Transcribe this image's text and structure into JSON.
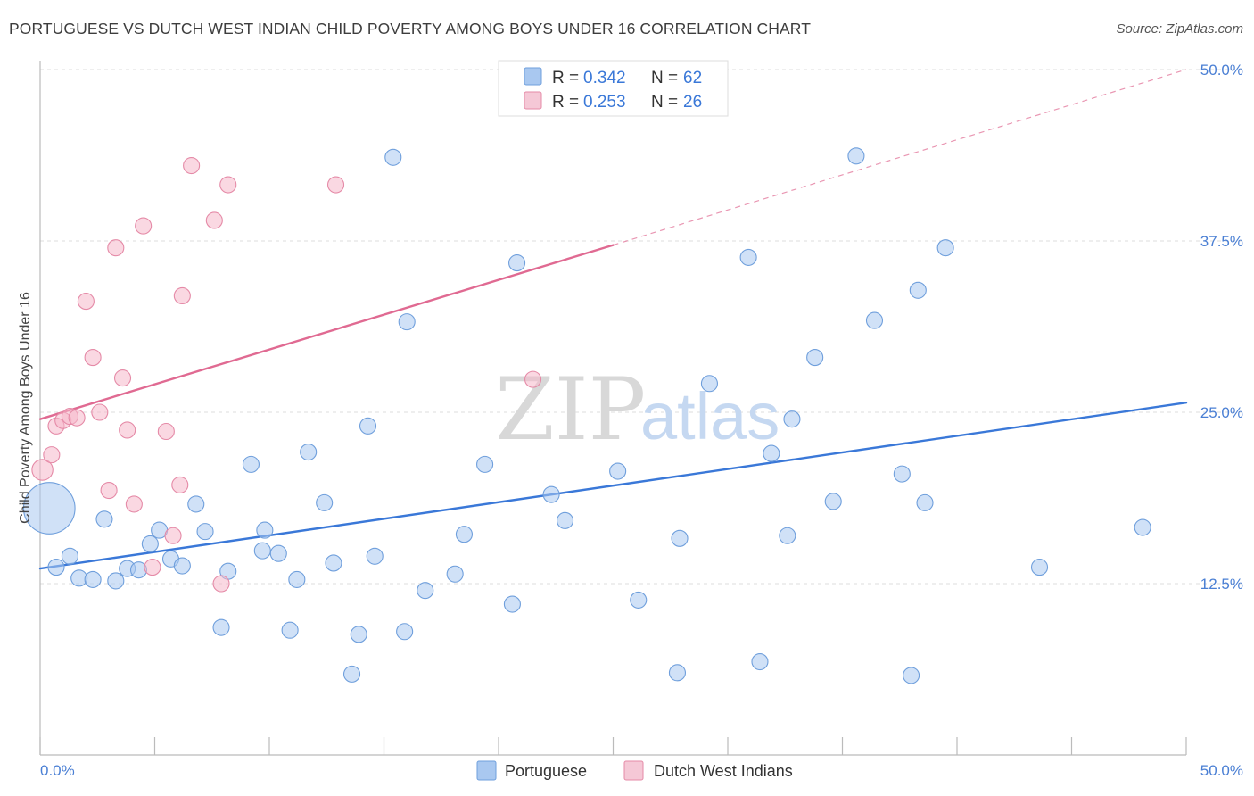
{
  "title": "PORTUGUESE VS DUTCH WEST INDIAN CHILD POVERTY AMONG BOYS UNDER 16 CORRELATION CHART",
  "source": "Source: ZipAtlas.com",
  "watermark": {
    "zip": "ZIP",
    "atlas": "atlas"
  },
  "legend": {
    "r_label": "R =",
    "n_label": "N =",
    "rows": [
      {
        "r": "0.342",
        "n": "62",
        "color": "#a9c8f0"
      },
      {
        "r": "0.253",
        "n": "26",
        "color": "#f5b8ca"
      }
    ]
  },
  "chart_data": {
    "type": "scatter",
    "title": "PORTUGUESE VS DUTCH WEST INDIAN CHILD POVERTY AMONG BOYS UNDER 16 CORRELATION CHART",
    "xlabel": "",
    "ylabel": "Child Poverty Among Boys Under 16",
    "xlim": [
      0,
      50
    ],
    "ylim": [
      0,
      50
    ],
    "x_tick_labels": [
      "0.0%",
      "50.0%"
    ],
    "y_ticks": [
      12.5,
      25.0,
      37.5,
      50.0
    ],
    "y_tick_labels": [
      "12.5%",
      "25.0%",
      "37.5%",
      "50.0%"
    ],
    "grid": true,
    "legend_position": "top-center",
    "series": [
      {
        "name": "Portuguese",
        "color": "#a9c8f0",
        "stroke": "#6f9fdc",
        "line_color": "#3a78d8",
        "r": 0.342,
        "n": 62,
        "trend": {
          "x": [
            0,
            50
          ],
          "y": [
            13.6,
            25.7
          ]
        },
        "points": [
          [
            0.4,
            18.0,
            3.2
          ],
          [
            0.7,
            13.7,
            1
          ],
          [
            1.3,
            14.5,
            1
          ],
          [
            1.7,
            12.9,
            1
          ],
          [
            2.3,
            12.8,
            1
          ],
          [
            2.8,
            17.2,
            1
          ],
          [
            3.3,
            12.7,
            1
          ],
          [
            3.8,
            13.6,
            1
          ],
          [
            4.3,
            13.5,
            1
          ],
          [
            4.8,
            15.4,
            1
          ],
          [
            5.2,
            16.4,
            1
          ],
          [
            5.7,
            14.3,
            1
          ],
          [
            6.2,
            13.8,
            1
          ],
          [
            6.8,
            18.3,
            1
          ],
          [
            7.2,
            16.3,
            1
          ],
          [
            7.9,
            9.3,
            1
          ],
          [
            8.2,
            13.4,
            1
          ],
          [
            9.2,
            21.2,
            1
          ],
          [
            9.7,
            14.9,
            1
          ],
          [
            9.8,
            16.4,
            1
          ],
          [
            10.4,
            14.7,
            1
          ],
          [
            10.9,
            9.1,
            1
          ],
          [
            11.2,
            12.8,
            1
          ],
          [
            11.7,
            22.1,
            1
          ],
          [
            12.4,
            18.4,
            1
          ],
          [
            12.8,
            14.0,
            1
          ],
          [
            13.6,
            5.9,
            1
          ],
          [
            13.9,
            8.8,
            1
          ],
          [
            14.3,
            24.0,
            1
          ],
          [
            14.6,
            14.5,
            1
          ],
          [
            15.4,
            43.6,
            1
          ],
          [
            15.9,
            9.0,
            1
          ],
          [
            16.0,
            31.6,
            1
          ],
          [
            16.8,
            12.0,
            1
          ],
          [
            18.1,
            13.2,
            1
          ],
          [
            18.5,
            16.1,
            1
          ],
          [
            19.4,
            21.2,
            1
          ],
          [
            20.6,
            11.0,
            1
          ],
          [
            20.8,
            35.9,
            1
          ],
          [
            22.3,
            19.0,
            1
          ],
          [
            22.9,
            17.1,
            1
          ],
          [
            25.2,
            20.7,
            1
          ],
          [
            26.1,
            11.3,
            1
          ],
          [
            27.8,
            6.0,
            1
          ],
          [
            27.9,
            15.8,
            1
          ],
          [
            29.2,
            27.1,
            1
          ],
          [
            30.9,
            36.3,
            1
          ],
          [
            31.4,
            6.8,
            1
          ],
          [
            31.9,
            22.0,
            1
          ],
          [
            32.6,
            16.0,
            1
          ],
          [
            32.8,
            24.5,
            1
          ],
          [
            33.8,
            29.0,
            1
          ],
          [
            34.6,
            18.5,
            1
          ],
          [
            35.6,
            43.7,
            1
          ],
          [
            36.4,
            31.7,
            1
          ],
          [
            37.6,
            20.5,
            1
          ],
          [
            38.0,
            5.8,
            1
          ],
          [
            38.3,
            33.9,
            1
          ],
          [
            38.6,
            18.4,
            1
          ],
          [
            39.5,
            37.0,
            1
          ],
          [
            43.6,
            13.7,
            1
          ],
          [
            48.1,
            16.6,
            1
          ]
        ]
      },
      {
        "name": "Dutch West Indians",
        "color": "#f5b8ca",
        "stroke": "#e58aa7",
        "line_color": "#e06a92",
        "r": 0.253,
        "n": 26,
        "trend": {
          "x": [
            0,
            25
          ],
          "y": [
            24.5,
            37.2
          ]
        },
        "trend_dashed": {
          "x": [
            25,
            50
          ],
          "y": [
            37.2,
            50.0
          ]
        },
        "points": [
          [
            0.1,
            20.8,
            1.3
          ],
          [
            0.5,
            21.9,
            1
          ],
          [
            0.7,
            24.0,
            1
          ],
          [
            1.0,
            24.4,
            1
          ],
          [
            1.3,
            24.7,
            1
          ],
          [
            1.6,
            24.6,
            1
          ],
          [
            2.0,
            33.1,
            1
          ],
          [
            2.3,
            29.0,
            1
          ],
          [
            2.6,
            25.0,
            1
          ],
          [
            3.0,
            19.3,
            1
          ],
          [
            3.3,
            37.0,
            1
          ],
          [
            3.6,
            27.5,
            1
          ],
          [
            3.8,
            23.7,
            1
          ],
          [
            4.1,
            18.3,
            1
          ],
          [
            4.5,
            38.6,
            1
          ],
          [
            4.9,
            13.7,
            1
          ],
          [
            5.5,
            23.6,
            1
          ],
          [
            5.8,
            16.0,
            1
          ],
          [
            6.1,
            19.7,
            1
          ],
          [
            6.2,
            33.5,
            1
          ],
          [
            6.6,
            43.0,
            1
          ],
          [
            7.6,
            39.0,
            1
          ],
          [
            7.9,
            12.5,
            1
          ],
          [
            8.2,
            41.6,
            1
          ],
          [
            12.9,
            41.6,
            1
          ],
          [
            21.5,
            27.4,
            1
          ]
        ]
      }
    ]
  }
}
